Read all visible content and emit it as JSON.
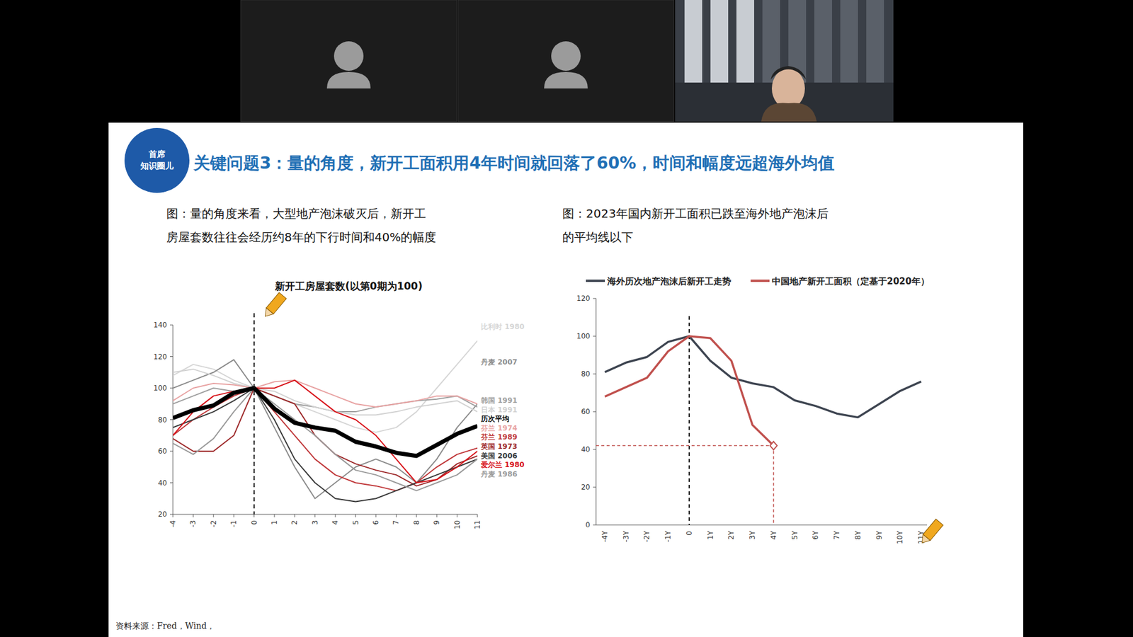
{
  "slide": {
    "logo": [
      "首席",
      "知识圈儿"
    ],
    "title": "关键问题3：量的角度，新开工面积用4年时间就回落了60%，时间和幅度远超海外均值",
    "captions": [
      [
        "图：量的角度来看，大型地产泡沫破灭后，新开工",
        "房屋套数往往会经历约8年的下行时间和40%的幅度"
      ],
      [
        "图：2023年国内新开工面积已跌至海外地产泡沫后",
        "的平均线以下"
      ]
    ],
    "source": "资料来源：Fred，Wind，"
  },
  "chart_data": [
    {
      "type": "line",
      "title": "新开工房屋套数(以第0期为100)",
      "x": [
        -4,
        -3,
        -2,
        -1,
        0,
        1,
        2,
        3,
        4,
        5,
        6,
        7,
        8,
        9,
        10,
        11
      ],
      "xlim": [
        -4,
        11
      ],
      "xticks": [
        -4,
        -3,
        -2,
        -1,
        0,
        1,
        2,
        3,
        4,
        5,
        6,
        7,
        8,
        9,
        10,
        11
      ],
      "ylim": [
        20,
        140
      ],
      "yticks": [
        20,
        40,
        60,
        80,
        100,
        120,
        140
      ],
      "vline": 0,
      "series": [
        {
          "name": "比利时 1980",
          "color": "#d6d6d6",
          "values": [
            108,
            115,
            112,
            105,
            100,
            95,
            90,
            85,
            80,
            75,
            72,
            75,
            85,
            100,
            115,
            130
          ]
        },
        {
          "name": "丹麦 2007",
          "color": "#8c8c8c",
          "values": [
            100,
            105,
            110,
            118,
            100,
            75,
            50,
            30,
            40,
            50,
            55,
            50,
            40,
            55,
            75,
            90
          ]
        },
        {
          "name": "韩国 1991",
          "color": "#a0a0a0",
          "values": [
            90,
            95,
            100,
            98,
            100,
            95,
            90,
            88,
            85,
            85,
            88,
            90,
            92,
            93,
            95,
            88
          ]
        },
        {
          "name": "日本 1991",
          "color": "#d2d2d2",
          "values": [
            110,
            112,
            108,
            103,
            100,
            98,
            92,
            88,
            85,
            83,
            83,
            85,
            88,
            90,
            92,
            85
          ]
        },
        {
          "name": "历次平均",
          "color": "#000000",
          "line_style": "bold",
          "values": [
            81,
            86,
            89,
            97,
            100,
            87,
            78,
            75,
            73,
            66,
            63,
            59,
            57,
            64,
            71,
            76
          ]
        },
        {
          "name": "芬兰 1974",
          "color": "#e8a3a3",
          "values": [
            92,
            100,
            103,
            102,
            100,
            104,
            105,
            100,
            95,
            90,
            88,
            90,
            92,
            95,
            95,
            90
          ]
        },
        {
          "name": "芬兰 1989",
          "color": "#c0393b",
          "values": [
            70,
            80,
            88,
            95,
            100,
            85,
            70,
            55,
            45,
            40,
            38,
            35,
            40,
            50,
            58,
            62
          ]
        },
        {
          "name": "英国 1973",
          "color": "#9e2a2b",
          "values": [
            68,
            60,
            60,
            70,
            100,
            95,
            90,
            70,
            58,
            52,
            48,
            45,
            38,
            42,
            52,
            57
          ]
        },
        {
          "name": "美国 2006",
          "color": "#3a3a3a",
          "values": [
            75,
            80,
            85,
            92,
            100,
            80,
            55,
            40,
            30,
            28,
            30,
            35,
            40,
            45,
            50,
            55
          ]
        },
        {
          "name": "爱尔兰 1980",
          "color": "#d8141b",
          "values": [
            70,
            85,
            95,
            98,
            100,
            100,
            105,
            95,
            85,
            80,
            70,
            55,
            40,
            42,
            50,
            60
          ]
        },
        {
          "name": "丹麦 1986",
          "color": "#9a9a9a",
          "values": [
            65,
            58,
            68,
            85,
            100,
            90,
            80,
            70,
            58,
            48,
            45,
            40,
            35,
            40,
            45,
            55
          ]
        }
      ]
    },
    {
      "type": "line",
      "categories": [
        "-4Y",
        "-3Y",
        "-2Y",
        "-1Y",
        "0",
        "1Y",
        "2Y",
        "3Y",
        "4Y",
        "5Y",
        "6Y",
        "7Y",
        "8Y",
        "9Y",
        "10Y",
        "11Y"
      ],
      "ylim": [
        0,
        120
      ],
      "yticks": [
        0,
        20,
        40,
        60,
        80,
        100,
        120
      ],
      "vline": "0",
      "legend": "top",
      "series": [
        {
          "name": "海外历次地产泡沫后新开工走势",
          "color": "#3d4450",
          "values": [
            81,
            86,
            89,
            97,
            100,
            87,
            78,
            75,
            73,
            66,
            63,
            59,
            57,
            64,
            71,
            76
          ]
        },
        {
          "name": "中国地产新开工面积（定基于2020年）",
          "color": "#c0504d",
          "marker": "diamond",
          "values": [
            68,
            73,
            78,
            92,
            100,
            99,
            87,
            53,
            42,
            null,
            null,
            null,
            null,
            null,
            null,
            null
          ]
        }
      ]
    }
  ]
}
